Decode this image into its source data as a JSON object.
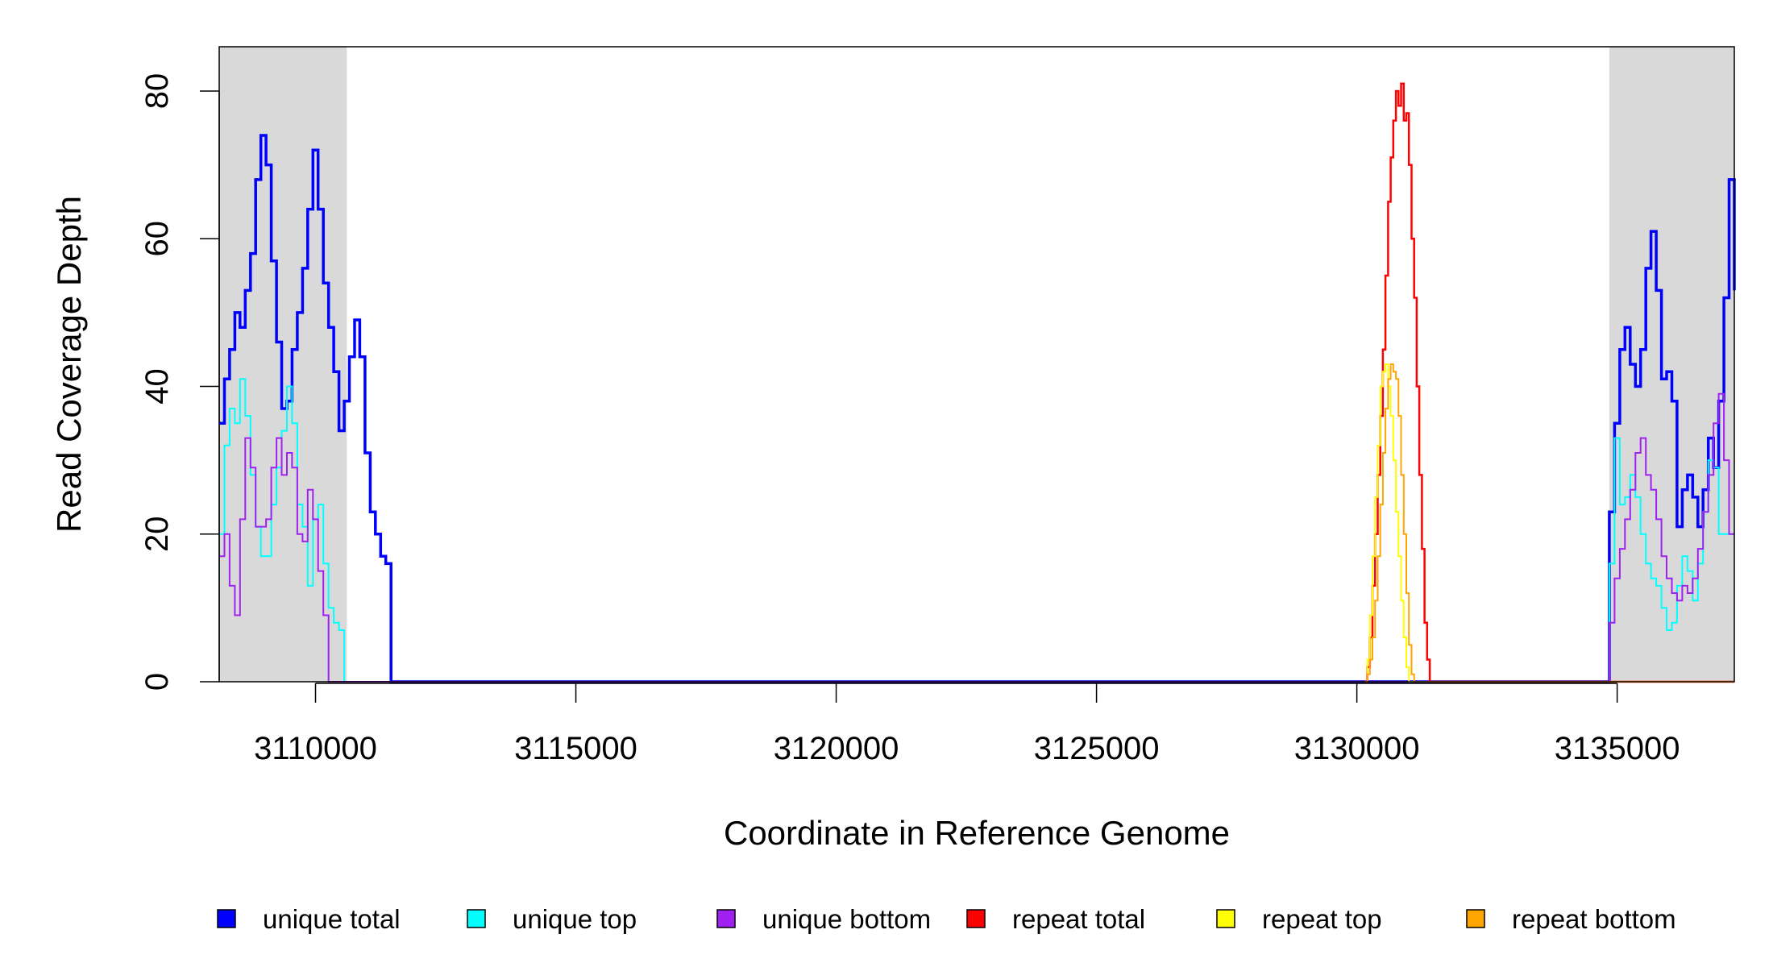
{
  "chart_data": {
    "type": "line",
    "title": "",
    "xlabel": "Coordinate in Reference Genome",
    "ylabel": "Read Coverage Depth",
    "xlim": [
      3108150,
      3137250
    ],
    "ylim": [
      0,
      86
    ],
    "x_ticks": [
      3110000,
      3115000,
      3120000,
      3125000,
      3130000,
      3135000
    ],
    "x_tick_labels": [
      "3110000",
      "3115000",
      "3120000",
      "3125000",
      "3130000",
      "3135000"
    ],
    "y_ticks": [
      0,
      20,
      40,
      60,
      80
    ],
    "y_tick_labels": [
      "0",
      "20",
      "40",
      "60",
      "80"
    ],
    "shaded_regions": [
      {
        "x0": 3108150,
        "x1": 3110600,
        "color": "#d9d9d9"
      },
      {
        "x0": 3134850,
        "x1": 3137250,
        "color": "#d9d9d9"
      }
    ],
    "grid": false,
    "legend_position": "bottom",
    "legend": [
      {
        "label": "unique total",
        "color": "#0000ff"
      },
      {
        "label": "unique top",
        "color": "#00ffff"
      },
      {
        "label": "unique bottom",
        "color": "#a020f0"
      },
      {
        "label": "repeat total",
        "color": "#ff0000"
      },
      {
        "label": "repeat top",
        "color": "#ffff00"
      },
      {
        "label": "repeat bottom",
        "color": "#ffa500"
      }
    ],
    "series": [
      {
        "name": "unique total",
        "color": "#0000ff",
        "width": 3.5,
        "points": [
          [
            3108150,
            35
          ],
          [
            3108250,
            41
          ],
          [
            3108350,
            45
          ],
          [
            3108450,
            50
          ],
          [
            3108550,
            48
          ],
          [
            3108650,
            53
          ],
          [
            3108750,
            58
          ],
          [
            3108850,
            68
          ],
          [
            3108950,
            74
          ],
          [
            3109050,
            70
          ],
          [
            3109150,
            57
          ],
          [
            3109250,
            46
          ],
          [
            3109350,
            37
          ],
          [
            3109450,
            38
          ],
          [
            3109550,
            45
          ],
          [
            3109650,
            50
          ],
          [
            3109750,
            56
          ],
          [
            3109850,
            64
          ],
          [
            3109950,
            72
          ],
          [
            3110050,
            64
          ],
          [
            3110150,
            54
          ],
          [
            3110250,
            48
          ],
          [
            3110350,
            42
          ],
          [
            3110450,
            34
          ],
          [
            3110550,
            38
          ],
          [
            3110650,
            44
          ],
          [
            3110750,
            49
          ],
          [
            3110850,
            44
          ],
          [
            3110950,
            31
          ],
          [
            3111050,
            23
          ],
          [
            3111150,
            20
          ],
          [
            3111250,
            17
          ],
          [
            3111350,
            16
          ],
          [
            3111450,
            0
          ],
          [
            3134800,
            0
          ],
          [
            3134850,
            23
          ],
          [
            3134950,
            35
          ],
          [
            3135050,
            45
          ],
          [
            3135150,
            48
          ],
          [
            3135250,
            43
          ],
          [
            3135350,
            40
          ],
          [
            3135450,
            45
          ],
          [
            3135550,
            56
          ],
          [
            3135650,
            61
          ],
          [
            3135750,
            53
          ],
          [
            3135850,
            41
          ],
          [
            3135950,
            42
          ],
          [
            3136050,
            38
          ],
          [
            3136150,
            21
          ],
          [
            3136250,
            26
          ],
          [
            3136350,
            28
          ],
          [
            3136450,
            25
          ],
          [
            3136550,
            21
          ],
          [
            3136650,
            26
          ],
          [
            3136750,
            33
          ],
          [
            3136850,
            29
          ],
          [
            3136950,
            38
          ],
          [
            3137050,
            52
          ],
          [
            3137150,
            68
          ],
          [
            3137250,
            53
          ]
        ]
      },
      {
        "name": "unique top",
        "color": "#00ffff",
        "width": 2,
        "points": [
          [
            3108150,
            20
          ],
          [
            3108250,
            32
          ],
          [
            3108350,
            37
          ],
          [
            3108450,
            35
          ],
          [
            3108550,
            41
          ],
          [
            3108650,
            36
          ],
          [
            3108750,
            28
          ],
          [
            3108850,
            21
          ],
          [
            3108950,
            17
          ],
          [
            3109050,
            17
          ],
          [
            3109150,
            24
          ],
          [
            3109250,
            29
          ],
          [
            3109350,
            34
          ],
          [
            3109450,
            40
          ],
          [
            3109550,
            35
          ],
          [
            3109650,
            24
          ],
          [
            3109750,
            21
          ],
          [
            3109850,
            13
          ],
          [
            3109950,
            22
          ],
          [
            3110050,
            24
          ],
          [
            3110150,
            16
          ],
          [
            3110250,
            10
          ],
          [
            3110350,
            8
          ],
          [
            3110450,
            7
          ],
          [
            3110550,
            0
          ],
          [
            3134800,
            0
          ],
          [
            3134850,
            16
          ],
          [
            3134950,
            33
          ],
          [
            3135050,
            24
          ],
          [
            3135150,
            25
          ],
          [
            3135250,
            28
          ],
          [
            3135350,
            25
          ],
          [
            3135450,
            20
          ],
          [
            3135550,
            16
          ],
          [
            3135650,
            14
          ],
          [
            3135750,
            13
          ],
          [
            3135850,
            10
          ],
          [
            3135950,
            7
          ],
          [
            3136050,
            8
          ],
          [
            3136150,
            13
          ],
          [
            3136250,
            17
          ],
          [
            3136350,
            15
          ],
          [
            3136450,
            11
          ],
          [
            3136550,
            16
          ],
          [
            3136650,
            23
          ],
          [
            3136750,
            30
          ],
          [
            3136850,
            29
          ],
          [
            3136950,
            20
          ]
        ]
      },
      {
        "name": "unique bottom",
        "color": "#a020f0",
        "width": 2,
        "points": [
          [
            3108150,
            17
          ],
          [
            3108250,
            20
          ],
          [
            3108350,
            13
          ],
          [
            3108450,
            9
          ],
          [
            3108550,
            22
          ],
          [
            3108650,
            33
          ],
          [
            3108750,
            29
          ],
          [
            3108850,
            21
          ],
          [
            3108950,
            21
          ],
          [
            3109050,
            22
          ],
          [
            3109150,
            29
          ],
          [
            3109250,
            33
          ],
          [
            3109350,
            28
          ],
          [
            3109450,
            31
          ],
          [
            3109550,
            29
          ],
          [
            3109650,
            20
          ],
          [
            3109750,
            19
          ],
          [
            3109850,
            26
          ],
          [
            3109950,
            22
          ],
          [
            3110050,
            15
          ],
          [
            3110150,
            9
          ],
          [
            3110250,
            0
          ],
          [
            3134800,
            0
          ],
          [
            3134850,
            8
          ],
          [
            3134950,
            14
          ],
          [
            3135050,
            18
          ],
          [
            3135150,
            22
          ],
          [
            3135250,
            26
          ],
          [
            3135350,
            31
          ],
          [
            3135450,
            33
          ],
          [
            3135550,
            28
          ],
          [
            3135650,
            26
          ],
          [
            3135750,
            22
          ],
          [
            3135850,
            17
          ],
          [
            3135950,
            14
          ],
          [
            3136050,
            12
          ],
          [
            3136150,
            11
          ],
          [
            3136250,
            13
          ],
          [
            3136350,
            12
          ],
          [
            3136450,
            14
          ],
          [
            3136550,
            18
          ],
          [
            3136650,
            23
          ],
          [
            3136750,
            28
          ],
          [
            3136850,
            35
          ],
          [
            3136950,
            39
          ],
          [
            3137050,
            30
          ],
          [
            3137150,
            20
          ]
        ]
      },
      {
        "name": "repeat total",
        "color": "#ff0000",
        "width": 2.5,
        "points": [
          [
            3130150,
            0
          ],
          [
            3130200,
            2
          ],
          [
            3130250,
            6
          ],
          [
            3130300,
            13
          ],
          [
            3130350,
            20
          ],
          [
            3130400,
            28
          ],
          [
            3130450,
            36
          ],
          [
            3130500,
            45
          ],
          [
            3130550,
            55
          ],
          [
            3130600,
            65
          ],
          [
            3130650,
            71
          ],
          [
            3130700,
            76
          ],
          [
            3130750,
            80
          ],
          [
            3130800,
            78
          ],
          [
            3130850,
            81
          ],
          [
            3130900,
            76
          ],
          [
            3130950,
            77
          ],
          [
            3131000,
            70
          ],
          [
            3131050,
            60
          ],
          [
            3131100,
            52
          ],
          [
            3131150,
            40
          ],
          [
            3131200,
            28
          ],
          [
            3131250,
            18
          ],
          [
            3131300,
            8
          ],
          [
            3131350,
            3
          ],
          [
            3131400,
            0
          ]
        ]
      },
      {
        "name": "repeat top",
        "color": "#ffff00",
        "width": 2,
        "points": [
          [
            3130150,
            0
          ],
          [
            3130200,
            3
          ],
          [
            3130250,
            9
          ],
          [
            3130300,
            17
          ],
          [
            3130350,
            25
          ],
          [
            3130400,
            32
          ],
          [
            3130450,
            40
          ],
          [
            3130500,
            42
          ],
          [
            3130550,
            43
          ],
          [
            3130600,
            40
          ],
          [
            3130650,
            36
          ],
          [
            3130700,
            30
          ],
          [
            3130750,
            23
          ],
          [
            3130800,
            17
          ],
          [
            3130850,
            11
          ],
          [
            3130900,
            6
          ],
          [
            3130950,
            2
          ],
          [
            3131000,
            0
          ]
        ]
      },
      {
        "name": "repeat bottom",
        "color": "#ffa500",
        "width": 2,
        "points": [
          [
            3130150,
            0
          ],
          [
            3130200,
            1
          ],
          [
            3130250,
            3
          ],
          [
            3130300,
            6
          ],
          [
            3130350,
            11
          ],
          [
            3130400,
            17
          ],
          [
            3130450,
            24
          ],
          [
            3130500,
            31
          ],
          [
            3130550,
            37
          ],
          [
            3130600,
            41
          ],
          [
            3130650,
            43
          ],
          [
            3130700,
            42
          ],
          [
            3130750,
            41
          ],
          [
            3130800,
            36
          ],
          [
            3130850,
            28
          ],
          [
            3130900,
            20
          ],
          [
            3130950,
            12
          ],
          [
            3131000,
            5
          ],
          [
            3131050,
            1
          ],
          [
            3131100,
            0
          ]
        ]
      }
    ]
  }
}
